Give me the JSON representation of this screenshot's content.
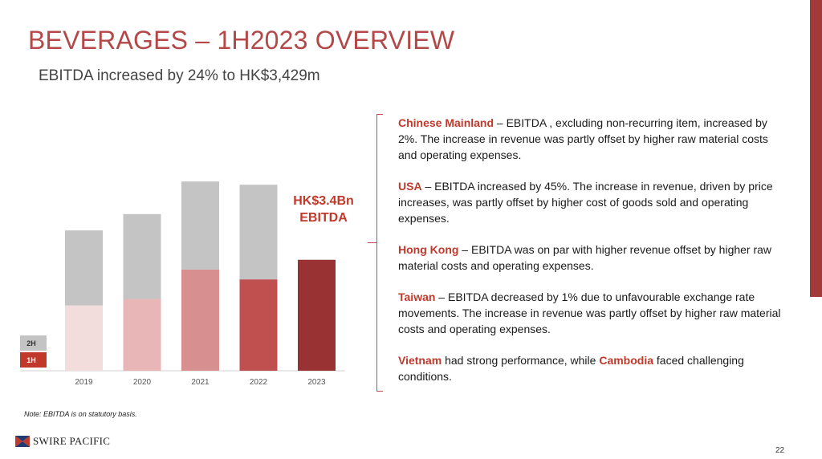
{
  "title": "BEVERAGES – 1H2023 OVERVIEW",
  "subtitle": "EBITDA increased by 24% to HK$3,429m",
  "chart_data": {
    "type": "bar",
    "stacked": true,
    "categories": [
      "2019",
      "2020",
      "2021",
      "2022",
      "2023"
    ],
    "series": [
      {
        "name": "1H",
        "values": [
          2.0,
          2.2,
          3.1,
          2.8,
          3.4
        ],
        "colors": [
          "#f3dcdc",
          "#e8b6b6",
          "#d88f8f",
          "#c05050",
          "#993333"
        ]
      },
      {
        "name": "2H",
        "values": [
          2.3,
          2.6,
          2.7,
          2.9,
          null
        ],
        "colors": [
          "#c4c4c4",
          "#c4c4c4",
          "#c4c4c4",
          "#c4c4c4",
          "#c4c4c4"
        ]
      }
    ],
    "legend": [
      {
        "label": "2H",
        "color": "#c4c4c4"
      },
      {
        "label": "1H",
        "color": "#c0392b"
      }
    ],
    "ylim": [
      0,
      6.0
    ],
    "grid": false,
    "legend_position": "bottom-left"
  },
  "callout": {
    "line1": "HK$3.4Bn",
    "line2": "EBITDA"
  },
  "notes": [
    {
      "highlight": "Chinese Mainland",
      "text": " – EBITDA , excluding non-recurring item, increased by 2%.  The increase in revenue was partly offset by higher raw material costs and operating expenses."
    },
    {
      "highlight": "USA",
      "text": " – EBITDA increased by 45%.  The increase in revenue, driven by price increases, was partly offset by higher cost of goods sold and operating expenses."
    },
    {
      "highlight": "Hong Kong",
      "text": " – EBITDA was on par with higher revenue offset by higher raw material costs and operating expenses."
    },
    {
      "highlight": "Taiwan",
      "text": " – EBITDA decreased by 1% due to unfavourable exchange rate movements.  The increase in revenue was partly offset by higher raw material costs and operating expenses."
    }
  ],
  "last_note": {
    "highlight1": "Vietnam",
    "text1": " had strong performance, while ",
    "highlight2": "Cambodia",
    "text2": " faced challenging conditions."
  },
  "footnote": "Note: EBITDA is on statutory basis.",
  "logo_text": "SWIRE PACIFIC",
  "logo_icon": "swire-flag-icon",
  "page_number": "22"
}
